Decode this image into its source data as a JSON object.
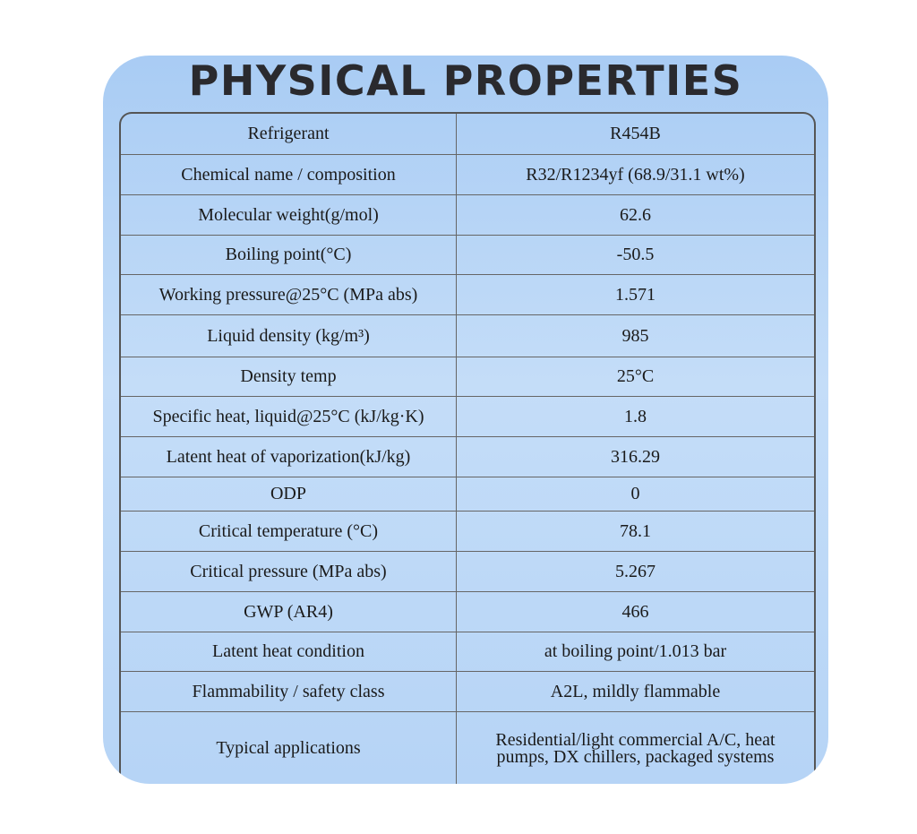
{
  "title": "PHYSICAL PROPERTIES",
  "table": {
    "rows": [
      [
        "Refrigerant",
        "R454B"
      ],
      [
        "Chemical name / composition",
        "R32/R1234yf (68.9/31.1 wt%)"
      ],
      [
        "Molecular weight(g/mol)",
        "62.6"
      ],
      [
        "Boiling point(°C)",
        "-50.5"
      ],
      [
        "Working pressure@25°C (MPa abs)",
        "1.571"
      ],
      [
        "Liquid density (kg/m³)",
        "985"
      ],
      [
        "Density temp",
        "25°C"
      ],
      [
        "Specific heat, liquid@25°C (kJ/kg·K)",
        "1.8"
      ],
      [
        "Latent heat of vaporization(kJ/kg)",
        "316.29"
      ],
      [
        "ODP",
        "0"
      ],
      [
        "Critical temperature (°C)",
        "78.1"
      ],
      [
        "Critical pressure (MPa abs)",
        "5.267"
      ],
      [
        "GWP (AR4)",
        "466"
      ],
      [
        "Latent heat condition",
        "at boiling point/1.013 bar"
      ],
      [
        "Flammability / safety class",
        "A2L, mildly flammable"
      ],
      [
        "Typical applications",
        "Residential/light commercial A/C, heat pumps, DX chillers, packaged systems"
      ]
    ]
  }
}
